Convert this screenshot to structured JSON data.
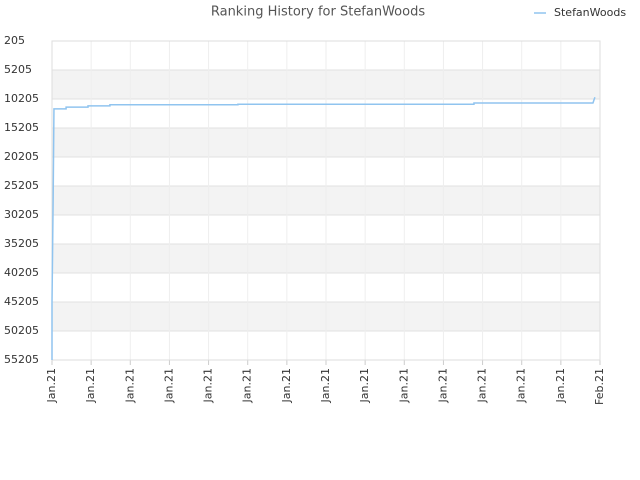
{
  "chart_data": {
    "type": "line",
    "title": "Ranking History for StefanWoods",
    "x": [
      0,
      0,
      0.03,
      0.05,
      0.36,
      0.36,
      0.92,
      0.92,
      1.48,
      1.48,
      4.75,
      4.75,
      10.78,
      10.78,
      13.82,
      13.87
    ],
    "series": [
      {
        "name": "StefanWoods",
        "color": "#90c4ef",
        "values": [
          55205,
          45400,
          27100,
          11900,
          11900,
          11600,
          11600,
          11400,
          11400,
          11200,
          11200,
          11100,
          11100,
          10900,
          10900,
          9900
        ]
      }
    ],
    "xlim": [
      0,
      14
    ],
    "xticks": [
      {
        "value": 0,
        "label": "Jan.21"
      },
      {
        "value": 1,
        "label": "Jan.21"
      },
      {
        "value": 2,
        "label": "Jan.21"
      },
      {
        "value": 3,
        "label": "Jan.21"
      },
      {
        "value": 4,
        "label": "Jan.21"
      },
      {
        "value": 5,
        "label": "Jan.21"
      },
      {
        "value": 6,
        "label": "Jan.21"
      },
      {
        "value": 7,
        "label": "Jan.21"
      },
      {
        "value": 8,
        "label": "Jan.21"
      },
      {
        "value": 9,
        "label": "Jan.21"
      },
      {
        "value": 10,
        "label": "Jan.21"
      },
      {
        "value": 11,
        "label": "Jan.21"
      },
      {
        "value": 12,
        "label": "Jan.21"
      },
      {
        "value": 13,
        "label": "Jan.21"
      },
      {
        "value": 14,
        "label": "Feb.21"
      }
    ],
    "ylim": [
      205,
      55205
    ],
    "y_inverted": true,
    "yticks": [
      205,
      5205,
      10205,
      15205,
      20205,
      25205,
      30205,
      35205,
      40205,
      45205,
      50205,
      55205
    ],
    "grid": true,
    "legend": "top-right"
  }
}
